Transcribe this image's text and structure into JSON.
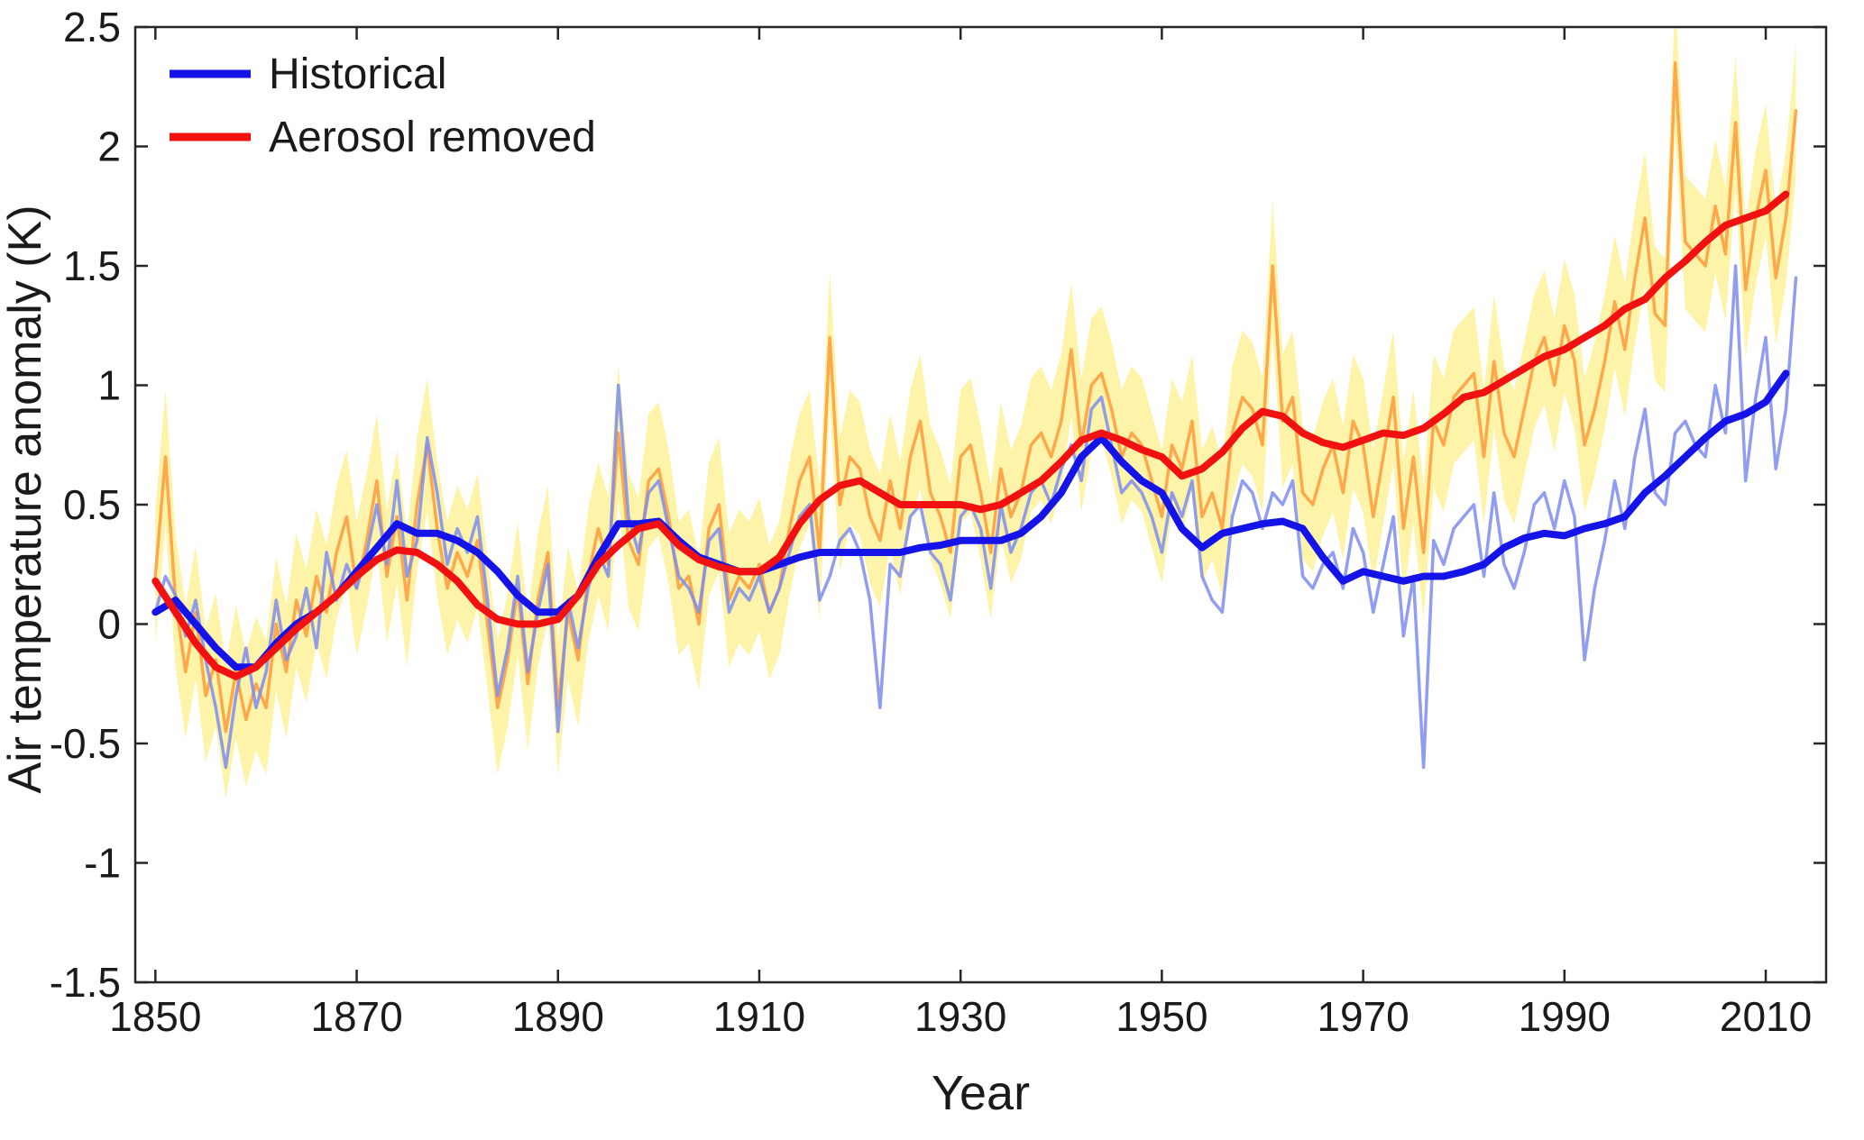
{
  "chart_data": {
    "type": "line",
    "title": "",
    "xlabel": "Year",
    "ylabel": "Air temperature anomaly (K)",
    "xlim": [
      1848,
      2016
    ],
    "ylim": [
      -1.5,
      2.5
    ],
    "grid": false,
    "x_ticks": [
      1850,
      1870,
      1890,
      1910,
      1930,
      1950,
      1970,
      1990,
      2010
    ],
    "x_tick_labels": [
      "1850",
      "1870",
      "1890",
      "1910",
      "1930",
      "1950",
      "1970",
      "1990",
      "2010"
    ],
    "y_ticks": [
      -1.5,
      -1,
      -0.5,
      0,
      0.5,
      1,
      1.5,
      2,
      2.5
    ],
    "y_tick_labels": [
      "-1.5",
      "-1",
      "-0.5",
      "0",
      "0.5",
      "1",
      "1.5",
      "2",
      "2.5"
    ],
    "legend": {
      "position": "top-left",
      "entries": [
        {
          "label": "Historical",
          "color": "#1414e8"
        },
        {
          "label": "Aerosol removed",
          "color": "#f21111"
        }
      ]
    },
    "band": {
      "around": "aerosol_annual",
      "halfwidth": 0.28,
      "color": "#fdf3a0",
      "opacity": 0.9,
      "meaning": "ensemble spread of aerosol-removed annual anomaly"
    },
    "series": [
      {
        "id": "aerosol_annual",
        "label": "Aerosol removed (annual)",
        "color": "#ffa040",
        "width": 3.5,
        "opacity": 0.9,
        "year_start": 1850,
        "year_step": 1,
        "values": [
          0.2,
          0.7,
          0.1,
          -0.2,
          0.05,
          -0.3,
          -0.15,
          -0.45,
          -0.2,
          -0.4,
          -0.25,
          -0.35,
          0.0,
          -0.2,
          0.1,
          -0.05,
          0.2,
          0.05,
          0.3,
          0.45,
          0.15,
          0.35,
          0.6,
          0.2,
          0.45,
          0.1,
          0.5,
          0.75,
          0.4,
          0.15,
          0.3,
          0.2,
          0.35,
          0.0,
          -0.35,
          -0.15,
          0.15,
          -0.25,
          0.1,
          0.3,
          -0.35,
          0.05,
          -0.15,
          0.2,
          0.4,
          0.25,
          0.8,
          0.35,
          0.25,
          0.6,
          0.65,
          0.45,
          0.15,
          0.2,
          0.0,
          0.4,
          0.5,
          0.1,
          0.2,
          0.15,
          0.25,
          0.05,
          0.15,
          0.4,
          0.6,
          0.7,
          0.3,
          1.2,
          0.5,
          0.7,
          0.65,
          0.45,
          0.35,
          0.6,
          0.4,
          0.7,
          0.85,
          0.55,
          0.45,
          0.3,
          0.7,
          0.75,
          0.55,
          0.3,
          0.65,
          0.45,
          0.55,
          0.75,
          0.8,
          0.7,
          0.85,
          1.15,
          0.75,
          1.0,
          1.05,
          0.9,
          0.7,
          0.8,
          0.75,
          0.6,
          0.45,
          0.75,
          0.65,
          0.85,
          0.45,
          0.55,
          0.4,
          0.8,
          0.95,
          0.9,
          0.75,
          1.5,
          0.85,
          0.95,
          0.55,
          0.5,
          0.65,
          0.75,
          0.55,
          0.85,
          0.75,
          0.45,
          0.7,
          0.95,
          0.4,
          0.7,
          0.3,
          0.85,
          0.75,
          0.95,
          1.0,
          1.05,
          0.7,
          1.1,
          0.8,
          0.7,
          0.9,
          1.1,
          1.2,
          1.0,
          1.25,
          1.1,
          0.75,
          0.9,
          1.1,
          1.35,
          1.15,
          1.45,
          1.7,
          1.3,
          1.25,
          2.35,
          1.6,
          1.55,
          1.5,
          1.75,
          1.55,
          2.1,
          1.4,
          1.7,
          1.9,
          1.45,
          1.7,
          2.15
        ]
      },
      {
        "id": "historical_annual",
        "label": "Historical (annual)",
        "color": "#7d8cee",
        "width": 3.5,
        "opacity": 0.85,
        "year_start": 1850,
        "year_step": 1,
        "values": [
          0.05,
          0.2,
          0.12,
          -0.05,
          0.1,
          -0.15,
          -0.35,
          -0.6,
          -0.3,
          -0.1,
          -0.35,
          -0.2,
          0.1,
          -0.15,
          -0.05,
          0.15,
          -0.1,
          0.3,
          0.1,
          0.25,
          0.15,
          0.3,
          0.5,
          0.25,
          0.6,
          0.2,
          0.35,
          0.78,
          0.55,
          0.25,
          0.4,
          0.3,
          0.45,
          0.1,
          -0.3,
          -0.1,
          0.2,
          -0.2,
          0.05,
          0.25,
          -0.45,
          0.1,
          -0.1,
          0.15,
          0.3,
          0.2,
          1.0,
          0.45,
          0.3,
          0.55,
          0.6,
          0.4,
          0.2,
          0.15,
          0.05,
          0.35,
          0.4,
          0.05,
          0.15,
          0.1,
          0.2,
          0.05,
          0.15,
          0.3,
          0.45,
          0.5,
          0.1,
          0.2,
          0.35,
          0.4,
          0.3,
          0.1,
          -0.35,
          0.25,
          0.2,
          0.45,
          0.5,
          0.3,
          0.25,
          0.1,
          0.45,
          0.5,
          0.4,
          0.15,
          0.5,
          0.3,
          0.4,
          0.55,
          0.6,
          0.5,
          0.65,
          0.75,
          0.6,
          0.9,
          0.95,
          0.75,
          0.55,
          0.6,
          0.55,
          0.45,
          0.3,
          0.55,
          0.45,
          0.6,
          0.2,
          0.1,
          0.05,
          0.45,
          0.6,
          0.55,
          0.4,
          0.55,
          0.5,
          0.6,
          0.2,
          0.15,
          0.25,
          0.3,
          0.15,
          0.4,
          0.3,
          0.05,
          0.25,
          0.45,
          -0.05,
          0.2,
          -0.6,
          0.35,
          0.25,
          0.4,
          0.45,
          0.5,
          0.2,
          0.55,
          0.25,
          0.15,
          0.3,
          0.5,
          0.55,
          0.4,
          0.6,
          0.45,
          -0.15,
          0.15,
          0.35,
          0.6,
          0.4,
          0.7,
          0.9,
          0.55,
          0.5,
          0.8,
          0.85,
          0.75,
          0.7,
          1.0,
          0.8,
          1.5,
          0.6,
          0.95,
          1.2,
          0.65,
          0.9,
          1.45
        ]
      },
      {
        "id": "historical_smoothed",
        "label": "Historical",
        "color": "#1414e8",
        "width": 8,
        "opacity": 1,
        "year_start": 1850,
        "year_step": 2,
        "values": [
          0.05,
          0.1,
          0.0,
          -0.1,
          -0.18,
          -0.18,
          -0.08,
          0.0,
          0.05,
          0.12,
          0.22,
          0.32,
          0.42,
          0.38,
          0.38,
          0.35,
          0.3,
          0.22,
          0.12,
          0.05,
          0.05,
          0.12,
          0.28,
          0.42,
          0.42,
          0.43,
          0.35,
          0.28,
          0.25,
          0.22,
          0.22,
          0.25,
          0.28,
          0.3,
          0.3,
          0.3,
          0.3,
          0.3,
          0.32,
          0.33,
          0.35,
          0.35,
          0.35,
          0.38,
          0.45,
          0.55,
          0.7,
          0.78,
          0.68,
          0.6,
          0.55,
          0.4,
          0.32,
          0.38,
          0.4,
          0.42,
          0.43,
          0.4,
          0.28,
          0.18,
          0.22,
          0.2,
          0.18,
          0.2,
          0.2,
          0.22,
          0.25,
          0.32,
          0.36,
          0.38,
          0.37,
          0.4,
          0.42,
          0.45,
          0.55,
          0.62,
          0.7,
          0.78,
          0.85,
          0.88,
          0.93,
          1.05
        ]
      },
      {
        "id": "aerosol_smoothed",
        "label": "Aerosol removed",
        "color": "#f21111",
        "width": 8,
        "opacity": 1,
        "year_start": 1850,
        "year_step": 2,
        "values": [
          0.18,
          0.05,
          -0.08,
          -0.18,
          -0.22,
          -0.18,
          -0.1,
          -0.02,
          0.05,
          0.12,
          0.2,
          0.27,
          0.31,
          0.3,
          0.25,
          0.18,
          0.08,
          0.02,
          0.0,
          0.0,
          0.02,
          0.12,
          0.25,
          0.33,
          0.4,
          0.42,
          0.33,
          0.27,
          0.24,
          0.22,
          0.22,
          0.28,
          0.42,
          0.52,
          0.58,
          0.6,
          0.55,
          0.5,
          0.5,
          0.5,
          0.5,
          0.48,
          0.5,
          0.55,
          0.6,
          0.68,
          0.77,
          0.8,
          0.77,
          0.73,
          0.7,
          0.62,
          0.65,
          0.72,
          0.82,
          0.89,
          0.87,
          0.8,
          0.76,
          0.74,
          0.77,
          0.8,
          0.79,
          0.82,
          0.88,
          0.95,
          0.97,
          1.02,
          1.07,
          1.12,
          1.15,
          1.2,
          1.25,
          1.32,
          1.36,
          1.45,
          1.52,
          1.6,
          1.67,
          1.7,
          1.73,
          1.8
        ]
      }
    ],
    "axis_color": "#262626"
  }
}
